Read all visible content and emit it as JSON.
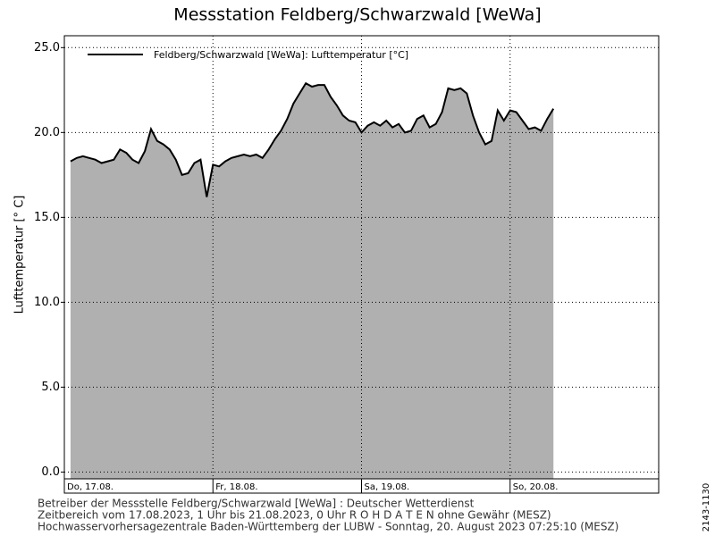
{
  "chart_data": {
    "type": "area",
    "title": "Messstation Feldberg/Schwarzwald [WeWa]",
    "y_label": "Lufttemperatur  [° C]",
    "x": [
      1,
      2,
      3,
      4,
      5,
      6,
      7,
      8,
      9,
      10,
      11,
      12,
      13,
      14,
      15,
      16,
      17,
      18,
      19,
      20,
      21,
      22,
      23,
      24,
      25,
      26,
      27,
      28,
      29,
      30,
      31,
      32,
      33,
      34,
      35,
      36,
      37,
      38,
      39,
      40,
      41,
      42,
      43,
      44,
      45,
      46,
      47,
      48,
      49,
      50,
      51,
      52,
      53,
      54,
      55,
      56,
      57,
      58,
      59,
      60,
      61,
      62,
      63,
      64,
      65,
      66,
      67,
      68,
      69,
      70,
      71,
      72,
      73,
      74,
      75,
      76,
      77,
      78,
      79
    ],
    "series": [
      {
        "name": "Feldberg/Schwarzwald [WeWa]: Lufttemperatur  [°C]",
        "color": "#000000",
        "fill": "#b0b0b0",
        "values": [
          18.3,
          18.5,
          18.6,
          18.5,
          18.4,
          18.2,
          18.3,
          18.4,
          19.0,
          18.8,
          18.4,
          18.2,
          18.9,
          20.2,
          19.5,
          19.3,
          19.0,
          18.4,
          17.5,
          17.6,
          18.2,
          18.4,
          16.2,
          18.1,
          18.0,
          18.3,
          18.5,
          18.6,
          18.7,
          18.6,
          18.7,
          18.5,
          19.0,
          19.6,
          20.1,
          20.8,
          21.7,
          22.3,
          22.9,
          22.7,
          22.8,
          22.8,
          22.1,
          21.6,
          21.0,
          20.7,
          20.6,
          20.0,
          20.4,
          20.6,
          20.4,
          20.7,
          20.3,
          20.5,
          20.0,
          20.1,
          20.8,
          21.0,
          20.3,
          20.5,
          21.2,
          22.6,
          22.5,
          22.6,
          22.3,
          21.0,
          20.0,
          19.3,
          19.5,
          21.3,
          20.7,
          21.3,
          21.2,
          20.7,
          20.2,
          20.3,
          20.1,
          20.8,
          21.4
        ]
      }
    ],
    "xlim": [
      0,
      96
    ],
    "xticks": [
      {
        "value": 0,
        "label": "Do, 17.08."
      },
      {
        "value": 24,
        "label": "Fr, 18.08."
      },
      {
        "value": 48,
        "label": "Sa, 19.08."
      },
      {
        "value": 72,
        "label": "So, 20.08."
      }
    ],
    "ylim": [
      -0.4,
      25.7
    ],
    "yticks": [
      {
        "value": 0,
        "label": "0.0"
      },
      {
        "value": 5,
        "label": "5.0"
      },
      {
        "value": 10,
        "label": "10.0"
      },
      {
        "value": 15,
        "label": "15.0"
      },
      {
        "value": 20,
        "label": "20.0"
      },
      {
        "value": 25,
        "label": "25.0"
      }
    ],
    "grid": true,
    "legend": "top-left",
    "footer": [
      "Betreiber der Messstelle Feldberg/Schwarzwald [WeWa] : Deutscher Wetterdienst",
      "Zeitbereich vom 17.08.2023, 1 Uhr bis 21.08.2023, 0 Uhr   R O H D A T E N ohne Gewähr (MESZ)",
      "Hochwasservorhersagezentrale Baden-Württemberg der LUBW - Sonntag, 20. August 2023 07:25:10 (MESZ)"
    ],
    "side_note": "2143-1130"
  }
}
